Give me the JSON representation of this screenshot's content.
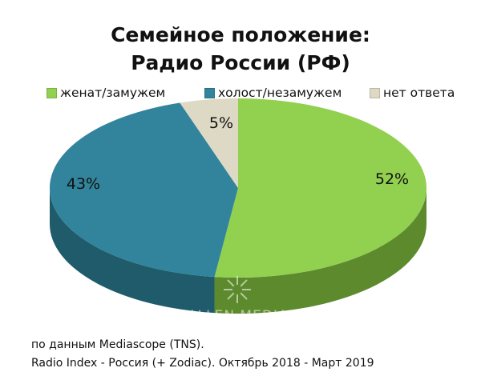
{
  "chart_data": {
    "type": "pie",
    "title_lines": [
      "Семейное положение:",
      "Радио России (РФ)"
    ],
    "categories": [
      "женат/замужем",
      "холост/незамужем",
      "нет ответа"
    ],
    "values": [
      52,
      43,
      5
    ],
    "value_labels": [
      "52%",
      "43%",
      "5%"
    ],
    "colors": [
      "#92d050",
      "#31849b",
      "#ddd9c4"
    ],
    "side_colors": [
      "#5c8a2c",
      "#1f5b6b",
      "#a8a48f"
    ],
    "legend_position": "top",
    "three_d": true
  },
  "watermark": {
    "text": "ALLEN MEDIA"
  },
  "source": {
    "line1": "по данным Mediascope (TNS).",
    "line2": "Radio Index - Россия (+ Zodiac). Октябрь 2018 - Март 2019"
  }
}
